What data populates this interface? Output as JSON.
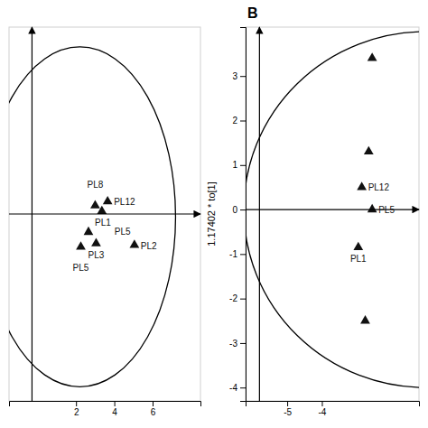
{
  "chart_data": [
    {
      "type": "scatter",
      "x": [
        3.0,
        3.65,
        3.35,
        2.65,
        3.05,
        2.25,
        5.05
      ],
      "values": [
        0.15,
        0.22,
        0.05,
        -0.32,
        -0.52,
        -0.58,
        -0.55
      ],
      "labels": [
        "PL8",
        "PL12",
        "PL5",
        "PL1",
        "PL3",
        "PL5",
        "PL2"
      ],
      "color": "#111111",
      "marker": "triangle",
      "ellipse": {
        "cx": 2.2,
        "cy": -0.05,
        "width": 10.0,
        "height": 6.0
      },
      "hline": 0.0,
      "vline": -0.3,
      "xlim": [
        -1.5,
        8.5
      ],
      "ylim": [
        -3.3,
        3.3
      ],
      "xticks": [
        2,
        4,
        6
      ],
      "tick_labels": "x"
    },
    {
      "type": "scatter",
      "annotations": [
        "B"
      ],
      "y_label": "1.17402 * to[1]",
      "x": [
        -2.85,
        -2.55,
        -2.95,
        -2.65,
        -2.75,
        -2.55
      ],
      "values": [
        0.5,
        0.0,
        -0.85,
        1.3,
        -2.5,
        3.4
      ],
      "labels": [
        "PL12",
        "PL5",
        "PL1",
        null,
        null,
        null
      ],
      "color": "#111111",
      "marker": "triangle",
      "ellipse": {
        "cx": -1.0,
        "cy": 0.0,
        "width": 10.5,
        "height": 8.0
      },
      "hline": 0.0,
      "vline": -5.8,
      "xlim": [
        -6.2,
        -1.2
      ],
      "ylim": [
        -4.3,
        4.1
      ],
      "xticks": [
        -5,
        -4
      ],
      "yticks": [
        -4,
        -3,
        -2,
        -1,
        0,
        1,
        2,
        3
      ]
    }
  ]
}
